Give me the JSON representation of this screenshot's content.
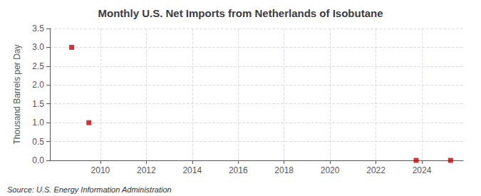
{
  "chart_data": {
    "type": "scatter",
    "title": "Monthly U.S. Net Imports from Netherlands of Isobutane",
    "ylabel": "Thousand Barrels per Day",
    "annotations": [
      "Source: U.S. Energy Information Administration"
    ],
    "x": [
      2008.75,
      2009.5,
      2023.75,
      2025.25
    ],
    "values": [
      3.0,
      1.0,
      0.0,
      0.0
    ],
    "color": "#cc0000",
    "marker": "square",
    "xlim": [
      2007.8,
      2025.8
    ],
    "xticks": [
      2010,
      2012,
      2014,
      2016,
      2018,
      2020,
      2022,
      2024
    ],
    "ylim": [
      0.0,
      3.5
    ],
    "yticks": [
      {
        "value": 0,
        "label": "0.0"
      },
      0.5,
      {
        "value": 1,
        "label": "1.0"
      },
      1.5,
      {
        "value": 2,
        "label": "2.0"
      },
      2.5,
      {
        "value": 3,
        "label": "3.0"
      },
      3.5
    ],
    "grid": true
  }
}
